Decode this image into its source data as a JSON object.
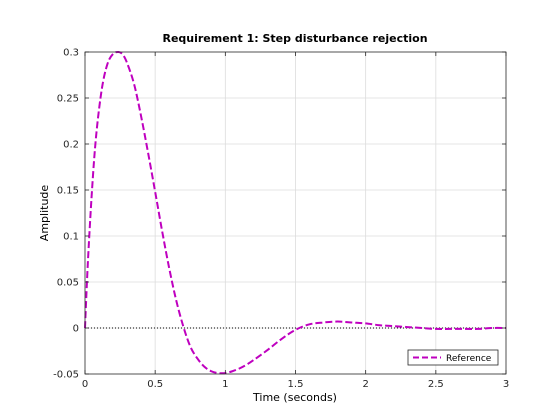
{
  "colors": {
    "series": "#bf00bf",
    "zero_line": "#000000",
    "grid": "#dcdcdc",
    "axes": "#262626",
    "background": "#ffffff"
  },
  "chart_data": {
    "type": "line",
    "title": "Requirement 1: Step disturbance rejection",
    "xlabel": "Time (seconds)",
    "ylabel": "Amplitude",
    "xlim": [
      0,
      3
    ],
    "ylim": [
      -0.05,
      0.3
    ],
    "xticks": [
      0,
      0.5,
      1,
      1.5,
      2,
      2.5,
      3
    ],
    "xtick_labels": [
      "0",
      "0.5",
      "1",
      "1.5",
      "2",
      "2.5",
      "3"
    ],
    "yticks": [
      -0.05,
      0,
      0.05,
      0.1,
      0.15,
      0.2,
      0.25,
      0.3
    ],
    "ytick_labels": [
      "-0.05",
      "0",
      "0.05",
      "0.1",
      "0.15",
      "0.2",
      "0.25",
      "0.3"
    ],
    "grid": true,
    "legend_position": "bottom-right",
    "series": [
      {
        "name": "Reference",
        "style": "dashed",
        "x": [
          0,
          0.02,
          0.05,
          0.08,
          0.12,
          0.16,
          0.2,
          0.24,
          0.27,
          0.3,
          0.35,
          0.4,
          0.45,
          0.5,
          0.55,
          0.6,
          0.65,
          0.7,
          0.75,
          0.8,
          0.85,
          0.9,
          0.95,
          1.0,
          1.05,
          1.1,
          1.15,
          1.2,
          1.3,
          1.4,
          1.5,
          1.6,
          1.7,
          1.8,
          1.9,
          2.0,
          2.1,
          2.2,
          2.3,
          2.4,
          2.5,
          2.6,
          2.7,
          2.8,
          2.9,
          3.0
        ],
        "y": [
          0,
          0.07,
          0.15,
          0.21,
          0.26,
          0.287,
          0.298,
          0.3,
          0.297,
          0.288,
          0.265,
          0.23,
          0.19,
          0.148,
          0.105,
          0.065,
          0.03,
          0.002,
          -0.02,
          -0.033,
          -0.042,
          -0.047,
          -0.049,
          -0.049,
          -0.047,
          -0.044,
          -0.04,
          -0.035,
          -0.024,
          -0.012,
          -0.002,
          0.004,
          0.006,
          0.007,
          0.006,
          0.005,
          0.003,
          0.002,
          0.001,
          0.0,
          -0.001,
          -0.001,
          -0.001,
          -0.001,
          0.0,
          0.0
        ]
      }
    ],
    "reference_lines": [
      {
        "y": 0,
        "style": "dotted"
      }
    ]
  }
}
